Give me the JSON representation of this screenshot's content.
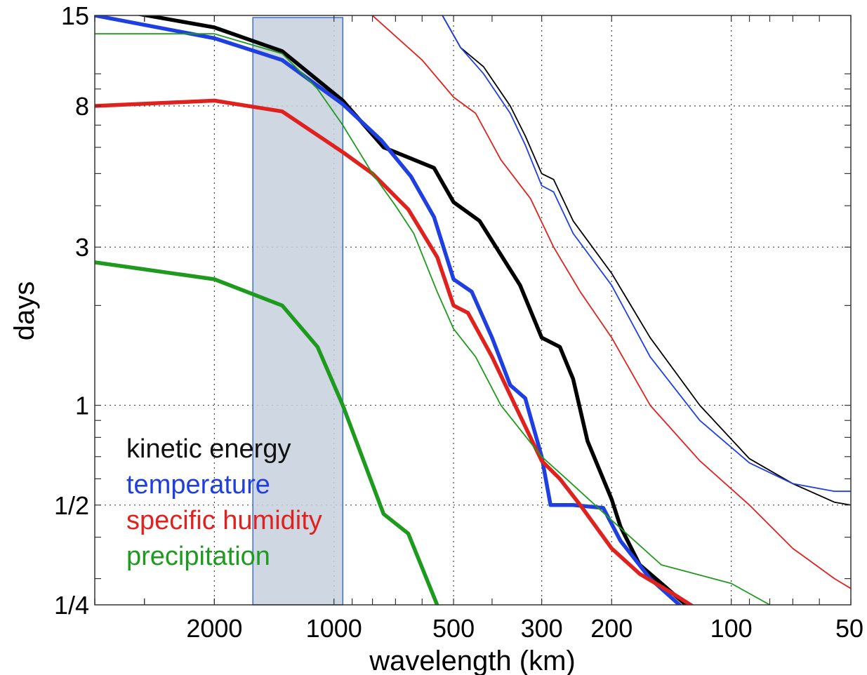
{
  "chart_data": {
    "type": "line",
    "xlabel": "wavelength (km)",
    "ylabel": "days",
    "xscale": "log-reversed",
    "yscale": "log",
    "xlim": [
      4000,
      50
    ],
    "ylim": [
      0.25,
      15
    ],
    "grid": true,
    "xticks": [
      {
        "value": 2000,
        "label": "2000"
      },
      {
        "value": 1000,
        "label": "1000"
      },
      {
        "value": 500,
        "label": "500"
      },
      {
        "value": 300,
        "label": "300"
      },
      {
        "value": 200,
        "label": "200"
      },
      {
        "value": 100,
        "label": "100"
      },
      {
        "value": 50,
        "label": "50"
      }
    ],
    "yticks": [
      {
        "value": 0.25,
        "label": "1/4"
      },
      {
        "value": 0.5,
        "label": "1/2"
      },
      {
        "value": 1,
        "label": "1"
      },
      {
        "value": 3,
        "label": "3"
      },
      {
        "value": 8,
        "label": "8"
      },
      {
        "value": 15,
        "label": "15"
      }
    ],
    "highlight_band": {
      "x": [
        1600,
        950
      ],
      "fill": "#c7d1dd",
      "stroke": "#3a6fd0"
    },
    "legend": {
      "position": "bottom-left",
      "entries": [
        {
          "label": "kinetic energy",
          "color": "#111111"
        },
        {
          "label": "temperature",
          "color": "#1f3fe0"
        },
        {
          "label": "specific humidity",
          "color": "#e0221f"
        },
        {
          "label": "precipitation",
          "color": "#1e9b1e"
        }
      ]
    },
    "series": [
      {
        "color": "#000000",
        "width": 5.5,
        "points": [
          [
            4000,
            16
          ],
          [
            2000,
            13.8
          ],
          [
            1350,
            11.7
          ],
          [
            950,
            8.3
          ],
          [
            750,
            6.0
          ],
          [
            560,
            5.2
          ],
          [
            500,
            4.1
          ],
          [
            430,
            3.6
          ],
          [
            340,
            2.3
          ],
          [
            300,
            1.6
          ],
          [
            270,
            1.5
          ],
          [
            250,
            1.2
          ],
          [
            230,
            0.78
          ],
          [
            200,
            0.52
          ],
          [
            190,
            0.43
          ],
          [
            170,
            0.33
          ],
          [
            150,
            0.29
          ],
          [
            130,
            0.25
          ]
        ]
      },
      {
        "color": "#1f3fe0",
        "width": 5.5,
        "points": [
          [
            4000,
            15
          ],
          [
            2000,
            12.8
          ],
          [
            1350,
            11
          ],
          [
            950,
            8.1
          ],
          [
            760,
            6.3
          ],
          [
            640,
            4.9
          ],
          [
            560,
            3.7
          ],
          [
            500,
            2.4
          ],
          [
            450,
            2.2
          ],
          [
            400,
            1.6
          ],
          [
            360,
            1.15
          ],
          [
            330,
            1.05
          ],
          [
            300,
            0.7
          ],
          [
            285,
            0.5
          ],
          [
            250,
            0.5
          ],
          [
            210,
            0.49
          ],
          [
            190,
            0.39
          ],
          [
            160,
            0.3
          ],
          [
            130,
            0.24
          ]
        ]
      },
      {
        "color": "#e0221f",
        "width": 5.5,
        "points": [
          [
            4000,
            8
          ],
          [
            2000,
            8.3
          ],
          [
            1350,
            7.7
          ],
          [
            950,
            5.8
          ],
          [
            800,
            5.0
          ],
          [
            650,
            3.9
          ],
          [
            550,
            2.8
          ],
          [
            500,
            2.0
          ],
          [
            460,
            1.9
          ],
          [
            400,
            1.4
          ],
          [
            350,
            1.0
          ],
          [
            300,
            0.68
          ],
          [
            270,
            0.6
          ],
          [
            240,
            0.5
          ],
          [
            200,
            0.37
          ],
          [
            170,
            0.31
          ],
          [
            140,
            0.27
          ],
          [
            120,
            0.24
          ]
        ]
      },
      {
        "color": "#1e9b1e",
        "width": 5.5,
        "points": [
          [
            4000,
            2.7
          ],
          [
            2000,
            2.4
          ],
          [
            1350,
            2.0
          ],
          [
            1100,
            1.5
          ],
          [
            950,
            1.0
          ],
          [
            750,
            0.47
          ],
          [
            650,
            0.41
          ],
          [
            550,
            0.25
          ]
        ]
      },
      {
        "color": "#000000",
        "width": 1.8,
        "points": [
          [
            550,
            16
          ],
          [
            480,
            12.0
          ],
          [
            420,
            10.5
          ],
          [
            360,
            8.0
          ],
          [
            330,
            6.5
          ],
          [
            300,
            5.0
          ],
          [
            280,
            4.8
          ],
          [
            250,
            3.6
          ],
          [
            200,
            2.5
          ],
          [
            160,
            1.6
          ],
          [
            120,
            1.0
          ],
          [
            90,
            0.69
          ],
          [
            70,
            0.58
          ],
          [
            55,
            0.51
          ],
          [
            50,
            0.5
          ]
        ]
      },
      {
        "color": "#1f3fe0",
        "width": 1.8,
        "points": [
          [
            550,
            16
          ],
          [
            480,
            12.0
          ],
          [
            420,
            10.0
          ],
          [
            360,
            7.6
          ],
          [
            330,
            6.1
          ],
          [
            300,
            4.6
          ],
          [
            280,
            4.4
          ],
          [
            250,
            3.3
          ],
          [
            200,
            2.3
          ],
          [
            160,
            1.4
          ],
          [
            120,
            0.9
          ],
          [
            90,
            0.67
          ],
          [
            70,
            0.58
          ],
          [
            55,
            0.55
          ],
          [
            50,
            0.55
          ]
        ]
      },
      {
        "color": "#e0221f",
        "width": 1.8,
        "points": [
          [
            850,
            16
          ],
          [
            600,
            11.0
          ],
          [
            500,
            8.5
          ],
          [
            440,
            7.6
          ],
          [
            380,
            5.5
          ],
          [
            320,
            4.2
          ],
          [
            280,
            3.0
          ],
          [
            240,
            2.2
          ],
          [
            200,
            1.6
          ],
          [
            160,
            1.0
          ],
          [
            120,
            0.68
          ],
          [
            90,
            0.5
          ],
          [
            70,
            0.37
          ],
          [
            55,
            0.3
          ],
          [
            50,
            0.28
          ]
        ]
      },
      {
        "color": "#1e9b1e",
        "width": 1.8,
        "points": [
          [
            4000,
            13.2
          ],
          [
            2000,
            13.2
          ],
          [
            1350,
            11.5
          ],
          [
            1100,
            9
          ],
          [
            950,
            7
          ],
          [
            800,
            5
          ],
          [
            700,
            4
          ],
          [
            630,
            3.3
          ],
          [
            550,
            2.2
          ],
          [
            500,
            1.7
          ],
          [
            440,
            1.4
          ],
          [
            380,
            1.0
          ],
          [
            300,
            0.7
          ],
          [
            260,
            0.6
          ],
          [
            200,
            0.45
          ],
          [
            150,
            0.33
          ],
          [
            100,
            0.29
          ],
          [
            80,
            0.25
          ]
        ]
      }
    ]
  }
}
